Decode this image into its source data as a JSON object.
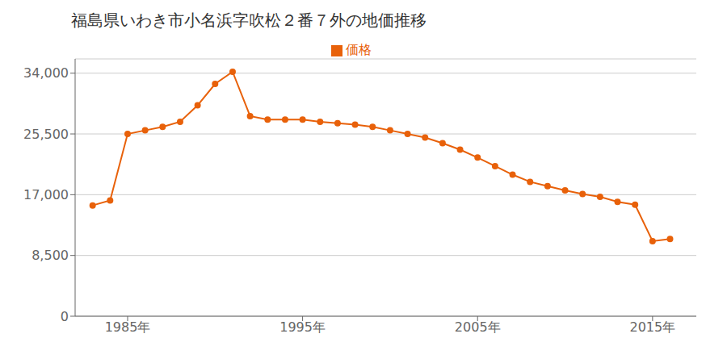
{
  "chart_data": {
    "type": "line",
    "title": "福島県いわき市小名浜字吹松２番７外の地価推移",
    "x": [
      1983,
      1984,
      1985,
      1986,
      1987,
      1988,
      1989,
      1990,
      1991,
      1992,
      1993,
      1994,
      1995,
      1996,
      1997,
      1998,
      1999,
      2000,
      2001,
      2002,
      2003,
      2004,
      2005,
      2006,
      2007,
      2008,
      2009,
      2010,
      2011,
      2012,
      2013,
      2014,
      2015,
      2016
    ],
    "series": [
      {
        "name": "価格",
        "color": "#e8610a",
        "marker": "circle",
        "values": [
          15500,
          16200,
          25500,
          26000,
          26500,
          27200,
          29500,
          32500,
          34200,
          28000,
          27500,
          27500,
          27500,
          27200,
          27000,
          26800,
          26500,
          26000,
          25500,
          25000,
          24200,
          23300,
          22200,
          21000,
          19800,
          18800,
          18200,
          17600,
          17100,
          16700,
          16000,
          15600,
          10500,
          10800
        ]
      }
    ],
    "xlim": [
      1982,
      2017.5
    ],
    "xticks": [
      {
        "value": 1985,
        "label": "1985年"
      },
      {
        "value": 1995,
        "label": "1995年"
      },
      {
        "value": 2005,
        "label": "2005年"
      },
      {
        "value": 2015,
        "label": "2015年"
      }
    ],
    "ylim": [
      0,
      36000
    ],
    "yticks": [
      0,
      {
        "value": 8500,
        "label": "8,500"
      },
      {
        "value": 17000,
        "label": "17,000"
      },
      {
        "value": 25500,
        "label": "25,500"
      },
      {
        "value": 34000,
        "label": "34,000"
      }
    ],
    "grid": "y",
    "legend": "top"
  }
}
